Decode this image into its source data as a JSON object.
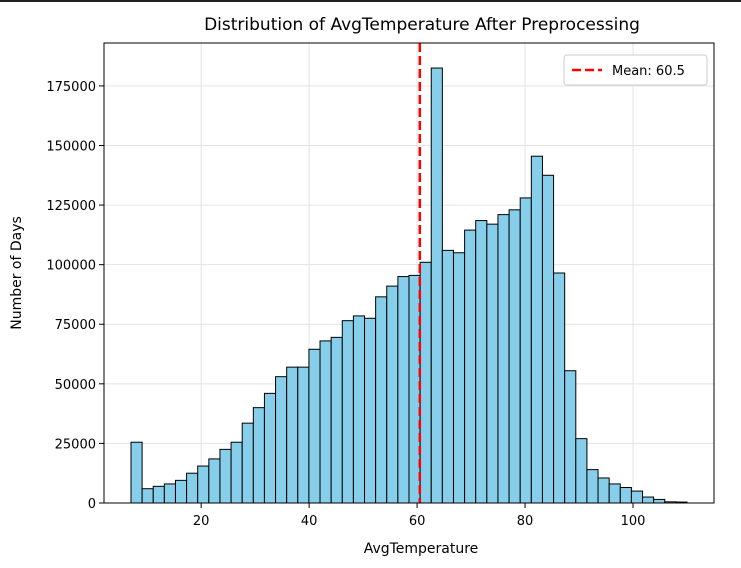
{
  "chart_data": {
    "type": "bar",
    "title": "Distribution of AvgTemperature After Preprocessing",
    "xlabel": "AvgTemperature",
    "ylabel": "Number of Days",
    "xlim": [
      2,
      115
    ],
    "ylim": [
      0,
      193000
    ],
    "bin_start": 7,
    "bin_width": 2.06,
    "values": [
      25500,
      6000,
      7000,
      8000,
      9500,
      12500,
      15500,
      18500,
      22500,
      25500,
      33500,
      40000,
      46000,
      53000,
      57000,
      57000,
      64500,
      68000,
      69500,
      76500,
      78500,
      77500,
      86500,
      91000,
      95000,
      95500,
      101000,
      182500,
      106000,
      105000,
      114500,
      118500,
      117000,
      121000,
      123000,
      128000,
      145500,
      137500,
      96500,
      55500,
      27000,
      14000,
      10500,
      8000,
      6500,
      5000,
      2500,
      1500,
      500,
      400
    ],
    "x_ticks": [
      20,
      40,
      60,
      80,
      100
    ],
    "y_ticks": [
      0,
      25000,
      50000,
      75000,
      100000,
      125000,
      150000,
      175000
    ],
    "mean": 60.5,
    "legend": {
      "entries": [
        "Mean: 60.5"
      ],
      "position": "upper-right"
    },
    "grid": true,
    "colors": {
      "bar_fill": "#87ceeb",
      "bar_edge": "#000000",
      "mean_line": "#ff0000",
      "grid": "#e3e3e3"
    }
  }
}
